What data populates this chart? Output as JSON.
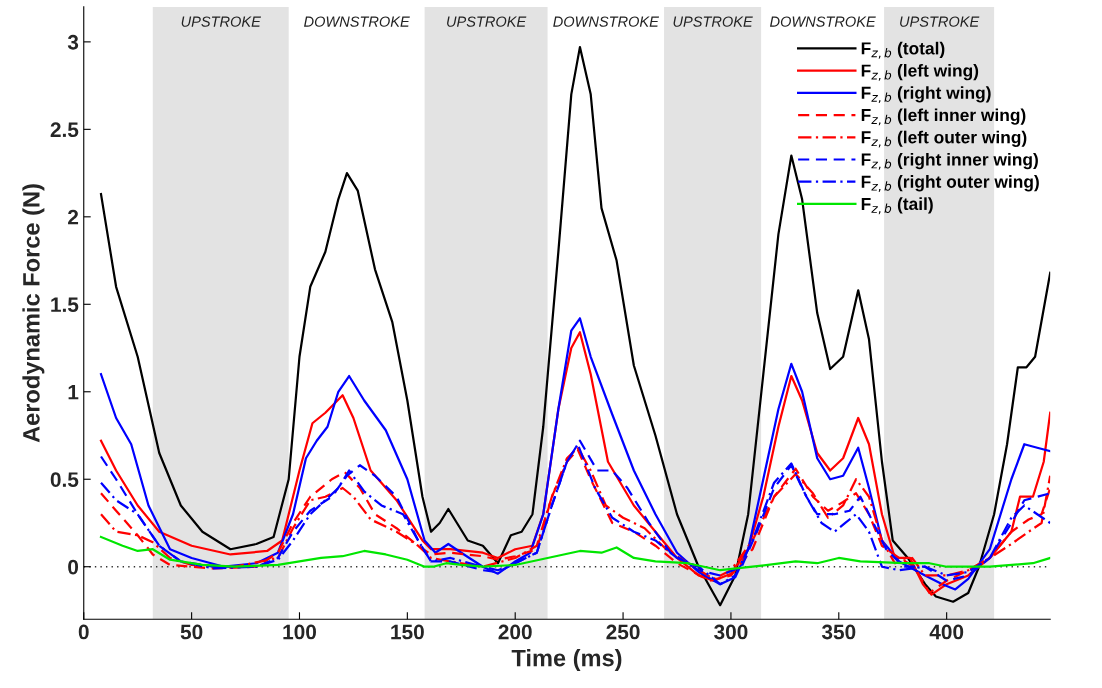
{
  "chart_data": {
    "type": "line",
    "xlabel": "Time (ms)",
    "ylabel": "Aerodynamic Force (N)",
    "xlim": [
      0,
      448
    ],
    "xticks": [
      0,
      50,
      100,
      150,
      200,
      250,
      300,
      350,
      400
    ],
    "ylim": [
      -0.3,
      3.2
    ],
    "yticks": [
      0,
      0.5,
      1,
      1.5,
      2,
      2.5,
      3
    ],
    "grid": false,
    "legend": "top right",
    "annotations": [
      "DOWNSTROKE",
      "DOWNSTROKE",
      "DOWNSTROKE"
    ],
    "ref_lines": [
      {
        "axis": "y",
        "value": 0,
        "color": "#333333",
        "line_style": "dotted"
      }
    ],
    "bands": [
      {
        "axis": "x",
        "from": 32,
        "to": 95,
        "label": "UPSTROKE",
        "color": "#e3e3e3"
      },
      {
        "axis": "x",
        "from": 158,
        "to": 215,
        "label": "UPSTROKE",
        "color": "#e3e3e3"
      },
      {
        "axis": "x",
        "from": 269,
        "to": 314,
        "label": "UPSTROKE",
        "color": "#e3e3e3"
      },
      {
        "axis": "x",
        "from": 371,
        "to": 422,
        "label": "UPSTROKE",
        "color": "#e3e3e3"
      }
    ],
    "series": [
      {
        "name": "F$_{z,b}$ (total)",
        "color": "#000000",
        "line_style": "solid",
        "x": [
          8,
          15,
          25,
          35,
          45,
          55,
          68,
          80,
          88,
          95,
          100,
          105,
          112,
          118,
          122,
          127,
          135,
          143,
          150,
          157,
          161,
          165,
          169,
          173,
          178,
          185,
          192,
          198,
          203,
          208,
          213,
          220,
          226,
          230,
          235,
          240,
          247,
          255,
          265,
          275,
          285,
          295,
          302,
          308,
          315,
          322,
          328,
          333,
          340,
          346,
          352,
          359,
          364,
          370,
          375,
          382,
          390,
          395,
          403,
          410,
          415,
          422,
          428,
          433,
          437,
          441,
          448
        ],
        "values": [
          2.13,
          1.6,
          1.2,
          0.65,
          0.35,
          0.2,
          0.1,
          0.13,
          0.17,
          0.5,
          1.2,
          1.6,
          1.8,
          2.1,
          2.25,
          2.15,
          1.7,
          1.4,
          0.95,
          0.4,
          0.2,
          0.25,
          0.33,
          0.25,
          0.15,
          0.12,
          0.02,
          0.18,
          0.2,
          0.3,
          0.8,
          1.8,
          2.7,
          2.97,
          2.7,
          2.05,
          1.75,
          1.15,
          0.75,
          0.3,
          0.0,
          -0.22,
          -0.05,
          0.3,
          1.1,
          1.9,
          2.35,
          2.1,
          1.45,
          1.13,
          1.2,
          1.58,
          1.3,
          0.6,
          0.15,
          0.05,
          -0.1,
          -0.17,
          -0.2,
          -0.15,
          0.0,
          0.3,
          0.7,
          1.14,
          1.14,
          1.2,
          1.68
        ]
      },
      {
        "name": "F$_{z,b}$ (left wing)",
        "color": "#ff0000",
        "line_style": "solid",
        "x": [
          8,
          15,
          25,
          35,
          50,
          68,
          85,
          92,
          100,
          106,
          112,
          120,
          125,
          133,
          145,
          157,
          161,
          170,
          185,
          192,
          200,
          208,
          213,
          220,
          226,
          230,
          235,
          243,
          255,
          265,
          275,
          285,
          292,
          300,
          308,
          315,
          322,
          328,
          333,
          340,
          346,
          352,
          359,
          364,
          370,
          376,
          383,
          389,
          393,
          400,
          410,
          420,
          430,
          434,
          440,
          445,
          448
        ],
        "values": [
          0.72,
          0.55,
          0.35,
          0.2,
          0.12,
          0.07,
          0.09,
          0.15,
          0.55,
          0.82,
          0.88,
          0.98,
          0.85,
          0.55,
          0.38,
          0.15,
          0.1,
          0.1,
          0.08,
          0.05,
          0.1,
          0.12,
          0.3,
          0.9,
          1.25,
          1.34,
          1.1,
          0.6,
          0.35,
          0.2,
          0.05,
          -0.05,
          -0.08,
          -0.04,
          0.1,
          0.4,
          0.8,
          1.09,
          0.95,
          0.65,
          0.55,
          0.62,
          0.85,
          0.7,
          0.3,
          0.05,
          0.05,
          -0.1,
          -0.16,
          -0.1,
          -0.05,
          0.05,
          0.2,
          0.4,
          0.4,
          0.6,
          0.88
        ]
      },
      {
        "name": "F$_{z,b}$ (right wing)",
        "color": "#0000ff",
        "line_style": "solid",
        "x": [
          8,
          15,
          22,
          30,
          40,
          50,
          65,
          80,
          90,
          97,
          103,
          108,
          113,
          118,
          123,
          130,
          140,
          150,
          158,
          163,
          169,
          175,
          185,
          192,
          200,
          207,
          213,
          220,
          226,
          230,
          235,
          245,
          255,
          265,
          275,
          285,
          295,
          302,
          308,
          315,
          322,
          328,
          333,
          340,
          346,
          352,
          359,
          364,
          370,
          378,
          390,
          398,
          404,
          410,
          420,
          430,
          436,
          442,
          448
        ],
        "values": [
          1.1,
          0.85,
          0.7,
          0.35,
          0.1,
          0.05,
          0.0,
          0.02,
          0.08,
          0.3,
          0.62,
          0.72,
          0.8,
          1.0,
          1.09,
          0.95,
          0.78,
          0.5,
          0.15,
          0.08,
          0.13,
          0.08,
          0.0,
          -0.04,
          0.03,
          0.08,
          0.3,
          0.9,
          1.35,
          1.42,
          1.2,
          0.87,
          0.55,
          0.3,
          0.08,
          -0.03,
          -0.1,
          -0.06,
          0.1,
          0.5,
          0.9,
          1.16,
          1.0,
          0.62,
          0.5,
          0.52,
          0.68,
          0.45,
          0.15,
          0.03,
          -0.05,
          -0.1,
          -0.13,
          -0.07,
          0.1,
          0.5,
          0.7,
          0.68,
          0.66
        ]
      },
      {
        "name": "F$_{z,b}$ (left inner wing)",
        "color": "#ff0000",
        "line_style": "dashed",
        "x": [
          8,
          15,
          25,
          32,
          40,
          60,
          80,
          90,
          97,
          105,
          115,
          121,
          128,
          135,
          145,
          155,
          161,
          170,
          185,
          192,
          200,
          210,
          217,
          224,
          229,
          235,
          245,
          255,
          265,
          275,
          290,
          300,
          310,
          320,
          330,
          338,
          345,
          352,
          358,
          364,
          370,
          378,
          385,
          392,
          400,
          410,
          420,
          430,
          438,
          444,
          448
        ],
        "values": [
          0.42,
          0.32,
          0.18,
          0.07,
          0.01,
          -0.01,
          0.0,
          0.08,
          0.25,
          0.4,
          0.5,
          0.54,
          0.45,
          0.3,
          0.22,
          0.12,
          0.07,
          0.08,
          0.06,
          0.04,
          0.06,
          0.1,
          0.4,
          0.6,
          0.67,
          0.5,
          0.25,
          0.2,
          0.12,
          0.02,
          -0.08,
          -0.05,
          0.1,
          0.4,
          0.56,
          0.4,
          0.32,
          0.37,
          0.42,
          0.3,
          0.12,
          0.05,
          0.0,
          -0.15,
          -0.08,
          -0.02,
          0.05,
          0.2,
          0.27,
          0.3,
          0.45
        ]
      },
      {
        "name": "F$_{z,b}$ (left outer wing)",
        "color": "#ff0000",
        "line_style": "dashdot",
        "x": [
          8,
          15,
          25,
          32,
          40,
          50,
          70,
          90,
          97,
          105,
          112,
          120,
          125,
          133,
          145,
          155,
          161,
          170,
          185,
          200,
          210,
          217,
          224,
          229,
          235,
          242,
          250,
          260,
          270,
          280,
          292,
          300,
          310,
          320,
          330,
          338,
          345,
          352,
          358,
          364,
          370,
          376,
          384,
          390,
          400,
          410,
          420,
          430,
          438,
          444,
          448
        ],
        "values": [
          0.3,
          0.2,
          0.18,
          0.14,
          0.05,
          0.01,
          0.0,
          0.05,
          0.22,
          0.38,
          0.4,
          0.45,
          0.4,
          0.27,
          0.2,
          0.12,
          0.05,
          0.03,
          0.0,
          0.05,
          0.12,
          0.4,
          0.62,
          0.68,
          0.55,
          0.35,
          0.28,
          0.22,
          0.1,
          0.02,
          -0.07,
          -0.02,
          0.15,
          0.4,
          0.53,
          0.42,
          0.28,
          0.35,
          0.5,
          0.4,
          0.15,
          0.02,
          0.05,
          -0.05,
          -0.05,
          -0.02,
          0.05,
          0.13,
          0.2,
          0.25,
          0.52
        ]
      },
      {
        "name": "F$_{z,b}$ (right inner wing)",
        "color": "#0000ff",
        "line_style": "dashed",
        "x": [
          8,
          15,
          25,
          35,
          45,
          60,
          80,
          90,
          97,
          105,
          115,
          122,
          128,
          135,
          145,
          155,
          161,
          170,
          185,
          192,
          200,
          210,
          217,
          224,
          230,
          238,
          245,
          252,
          262,
          272,
          285,
          295,
          305,
          312,
          320,
          328,
          335,
          340,
          348,
          355,
          360,
          366,
          372,
          380,
          390,
          400,
          410,
          420,
          430,
          436,
          442,
          448
        ],
        "values": [
          0.63,
          0.5,
          0.3,
          0.12,
          0.03,
          0.0,
          0.0,
          0.05,
          0.2,
          0.32,
          0.4,
          0.52,
          0.58,
          0.52,
          0.4,
          0.15,
          0.03,
          0.03,
          -0.02,
          -0.03,
          0.02,
          0.08,
          0.35,
          0.6,
          0.72,
          0.55,
          0.55,
          0.45,
          0.25,
          0.08,
          -0.02,
          -0.05,
          0.0,
          0.2,
          0.45,
          0.58,
          0.4,
          0.3,
          0.3,
          0.32,
          0.4,
          0.25,
          0.1,
          0.0,
          0.0,
          -0.08,
          -0.05,
          0.05,
          0.25,
          0.38,
          0.4,
          0.42
        ]
      },
      {
        "name": "F$_{z,b}$ (right outer wing)",
        "color": "#0000ff",
        "line_style": "dashdot",
        "x": [
          8,
          15,
          25,
          35,
          45,
          60,
          80,
          90,
          97,
          105,
          112,
          118,
          123,
          130,
          138,
          148,
          155,
          161,
          170,
          185,
          192,
          200,
          210,
          217,
          224,
          229,
          237,
          245,
          255,
          265,
          275,
          285,
          295,
          302,
          310,
          320,
          328,
          335,
          342,
          348,
          353,
          358,
          364,
          370,
          378,
          390,
          400,
          410,
          420,
          430,
          436,
          442,
          448
        ],
        "values": [
          0.48,
          0.38,
          0.3,
          0.12,
          0.03,
          -0.01,
          0.0,
          0.04,
          0.15,
          0.3,
          0.38,
          0.45,
          0.55,
          0.43,
          0.35,
          0.3,
          0.15,
          0.03,
          0.05,
          0.0,
          -0.02,
          0.02,
          0.08,
          0.35,
          0.6,
          0.7,
          0.45,
          0.28,
          0.2,
          0.15,
          0.05,
          0.0,
          -0.1,
          -0.05,
          0.15,
          0.48,
          0.59,
          0.4,
          0.25,
          0.2,
          0.25,
          0.3,
          0.2,
          0.0,
          -0.02,
          0.0,
          -0.05,
          -0.03,
          0.05,
          0.28,
          0.35,
          0.3,
          0.25
        ]
      },
      {
        "name": "F$_{z,b}$ (tail)",
        "color": "#00e600",
        "line_style": "solid",
        "x": [
          8,
          18,
          25,
          32,
          40,
          55,
          70,
          90,
          110,
          120,
          130,
          140,
          150,
          158,
          162,
          168,
          175,
          185,
          200,
          215,
          230,
          240,
          247,
          255,
          265,
          280,
          295,
          310,
          330,
          340,
          350,
          360,
          380,
          392,
          400,
          420,
          440,
          448
        ],
        "values": [
          0.17,
          0.12,
          0.09,
          0.1,
          0.04,
          0.01,
          0.0,
          0.01,
          0.05,
          0.06,
          0.09,
          0.07,
          0.04,
          0.0,
          0.0,
          0.02,
          0.01,
          0.0,
          0.01,
          0.05,
          0.09,
          0.08,
          0.11,
          0.05,
          0.03,
          0.02,
          -0.02,
          0.0,
          0.03,
          0.02,
          0.05,
          0.03,
          0.02,
          0.02,
          0.0,
          0.0,
          0.02,
          0.05
        ]
      }
    ]
  }
}
